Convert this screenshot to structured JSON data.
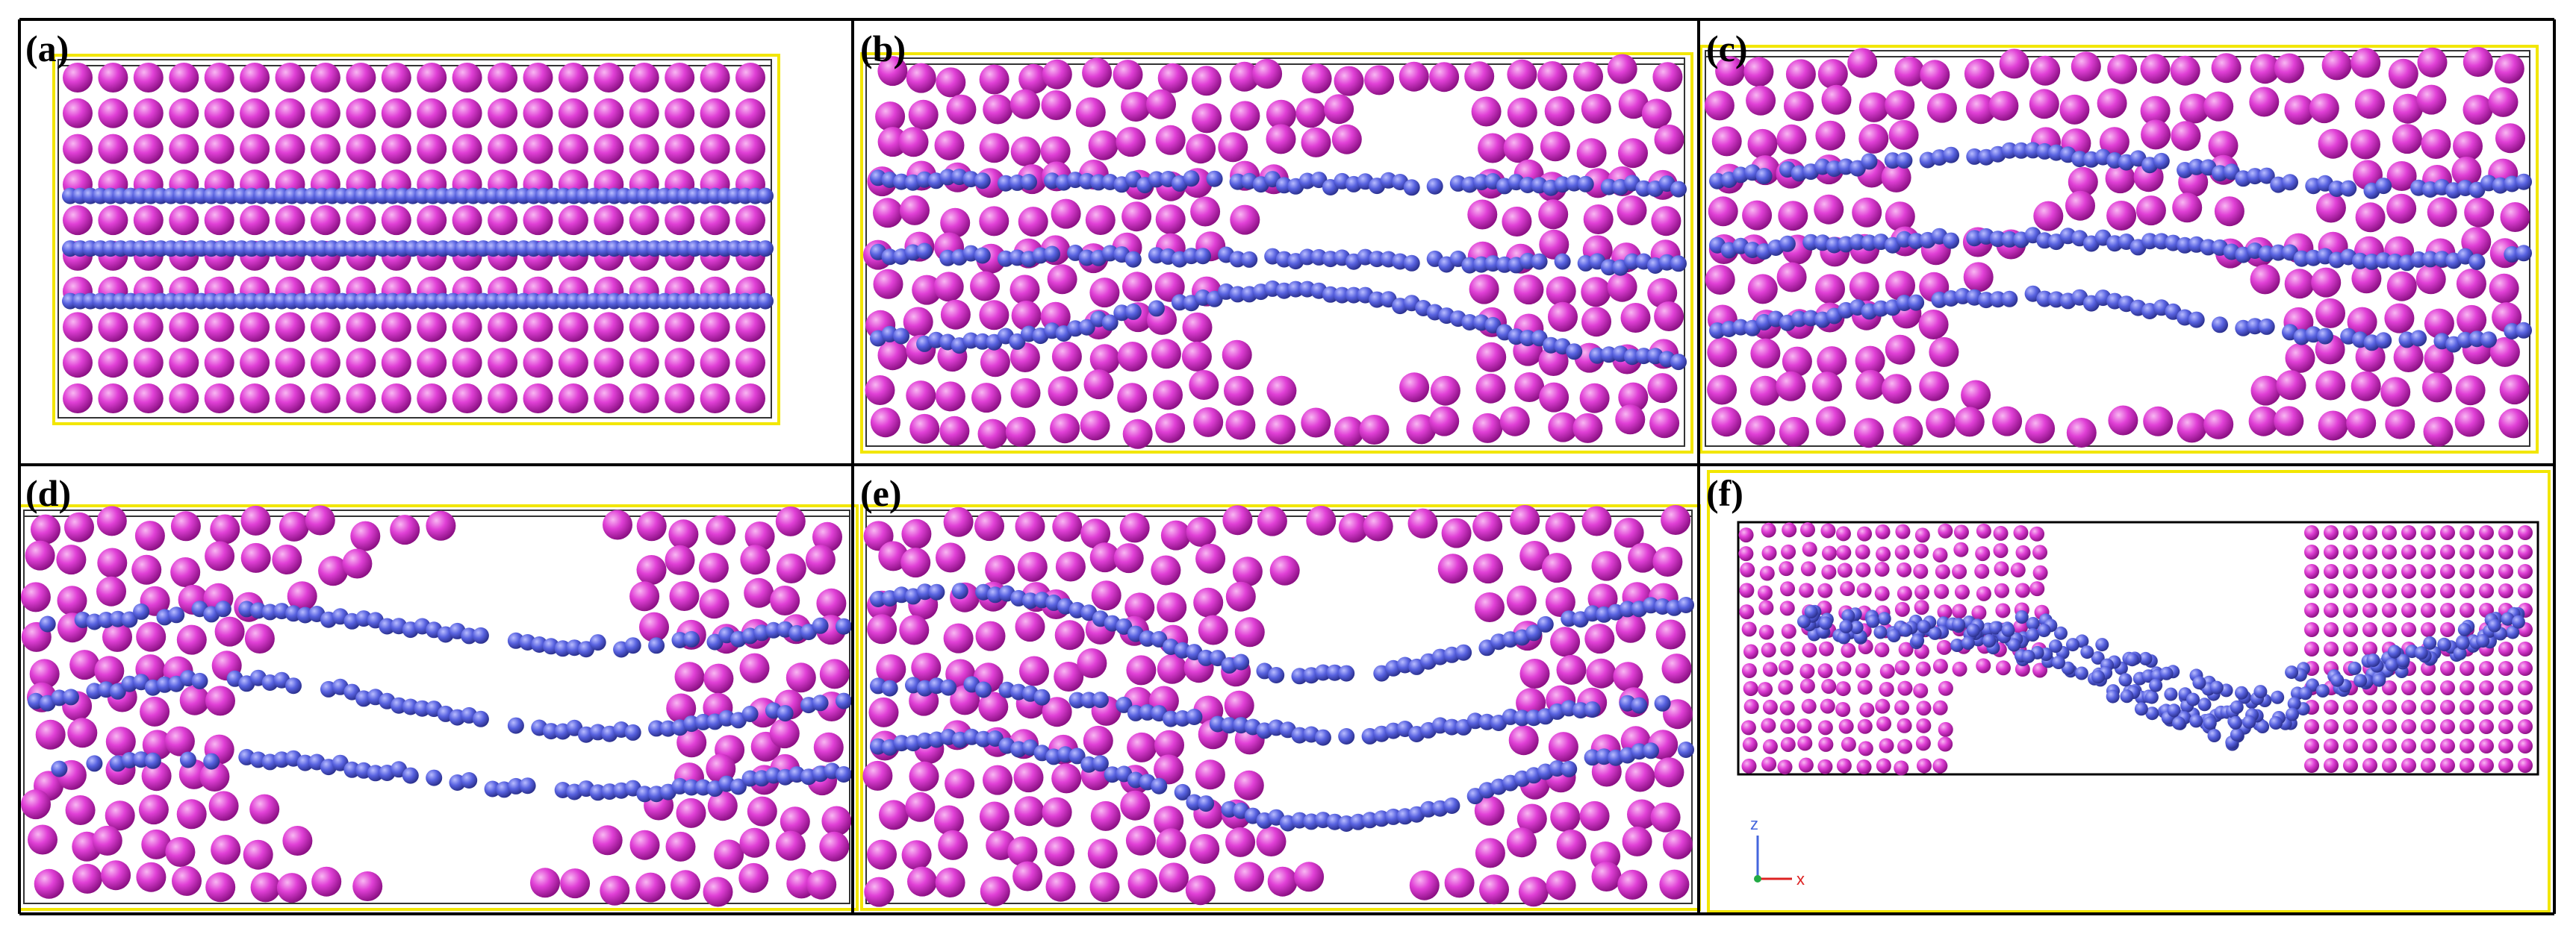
{
  "panels": [
    {
      "label": "(a)"
    },
    {
      "label": "(b)"
    },
    {
      "label": "(c)"
    },
    {
      "label": "(d)"
    },
    {
      "label": "(e)"
    },
    {
      "label": "(f)",
      "axes": [
        "z",
        "x"
      ]
    }
  ]
}
